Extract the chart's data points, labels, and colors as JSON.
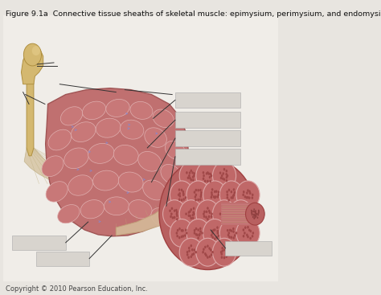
{
  "title": "Figure 9.1a  Connective tissue sheaths of skeletal muscle: epimysium, perimysium, and endomysium.",
  "copyright": "Copyright © 2010 Pearson Education, Inc.",
  "bg_color": "#e8e5e0",
  "title_fontsize": 6.8,
  "copyright_fontsize": 6.0,
  "muscle_color": "#c07070",
  "muscle_edge": "#a05555",
  "tendon_color": "#d4c0a0",
  "tendon_edge": "#b8a888",
  "bone_color": "#d4b870",
  "bone_edge": "#b09040",
  "fascicle_bg": "#b86060",
  "fascicle_cell_color": "#c47878",
  "fascicle_cell_edge": "#dda0a0",
  "perimysium_line_color": "#e8d0d0",
  "label_box_color": "#d8d4ce",
  "label_box_edge": "#aaaaaa",
  "label_line_color": "#333333",
  "cylinder_color": "#c07070",
  "cylinder_end_color": "#b86060",
  "white_bg_color": "#f0ede8"
}
